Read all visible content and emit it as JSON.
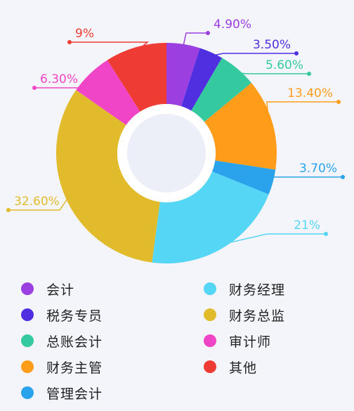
{
  "chart_data": {
    "type": "pie",
    "title": "",
    "slices": [
      {
        "label": "会计",
        "value": 4.9,
        "value_label": "4.90%",
        "color": "#9b3fe0"
      },
      {
        "label": "税务专员",
        "value": 3.5,
        "value_label": "3.50%",
        "color": "#4f2fe0"
      },
      {
        "label": "总账会计",
        "value": 5.6,
        "value_label": "5.60%",
        "color": "#35c9a0"
      },
      {
        "label": "财务主管",
        "value": 13.4,
        "value_label": "13.40%",
        "color": "#ff9d1a"
      },
      {
        "label": "管理会计",
        "value": 3.7,
        "value_label": "3.70%",
        "color": "#2aa3ec"
      },
      {
        "label": "财务经理",
        "value": 21,
        "value_label": "21%",
        "color": "#55d6f5"
      },
      {
        "label": "财务总监",
        "value": 32.6,
        "value_label": "32.60%",
        "color": "#e2bb2c"
      },
      {
        "label": "审计师",
        "value": 6.3,
        "value_label": "6.30%",
        "color": "#ef45c6"
      },
      {
        "label": "其他",
        "value": 9,
        "value_label": "9%",
        "color": "#ee3b34"
      }
    ],
    "legend_position": "bottom"
  }
}
